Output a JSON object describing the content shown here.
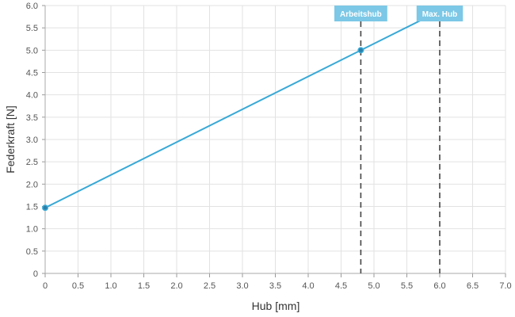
{
  "chart_data": {
    "type": "line",
    "xlabel": "Hub [mm]",
    "ylabel": "Federkraft [N]",
    "xlim": [
      0,
      7
    ],
    "ylim": [
      0,
      6
    ],
    "x_ticks": [
      "0",
      "0.5",
      "1.0",
      "1.5",
      "2.0",
      "2.5",
      "3.0",
      "3.5",
      "4.0",
      "4.5",
      "5.0",
      "5.5",
      "6.0",
      "6.5",
      "7.0"
    ],
    "y_ticks": [
      "0",
      "0.5",
      "1.0",
      "1.5",
      "2.0",
      "2.5",
      "3.0",
      "3.5",
      "4.0",
      "4.5",
      "5.0",
      "5.5",
      "6.0"
    ],
    "grid": true,
    "series": [
      {
        "color": "#38a9d6",
        "points": [
          {
            "x": 0,
            "y": 1.47
          },
          {
            "x": 4.8,
            "y": 5.0
          },
          {
            "x": 6.0,
            "y": 5.88
          }
        ]
      }
    ],
    "annotations": [
      {
        "x": 4.8,
        "label": "Arbeitshub"
      },
      {
        "x": 6.0,
        "label": "Max. Hub"
      }
    ],
    "colors": {
      "line": "#38a9d6",
      "marker_fill": "#2b7fa8",
      "annotation_bg": "#7cc8e6",
      "annotation_line": "#444444",
      "grid": "#e2e2e2"
    }
  }
}
